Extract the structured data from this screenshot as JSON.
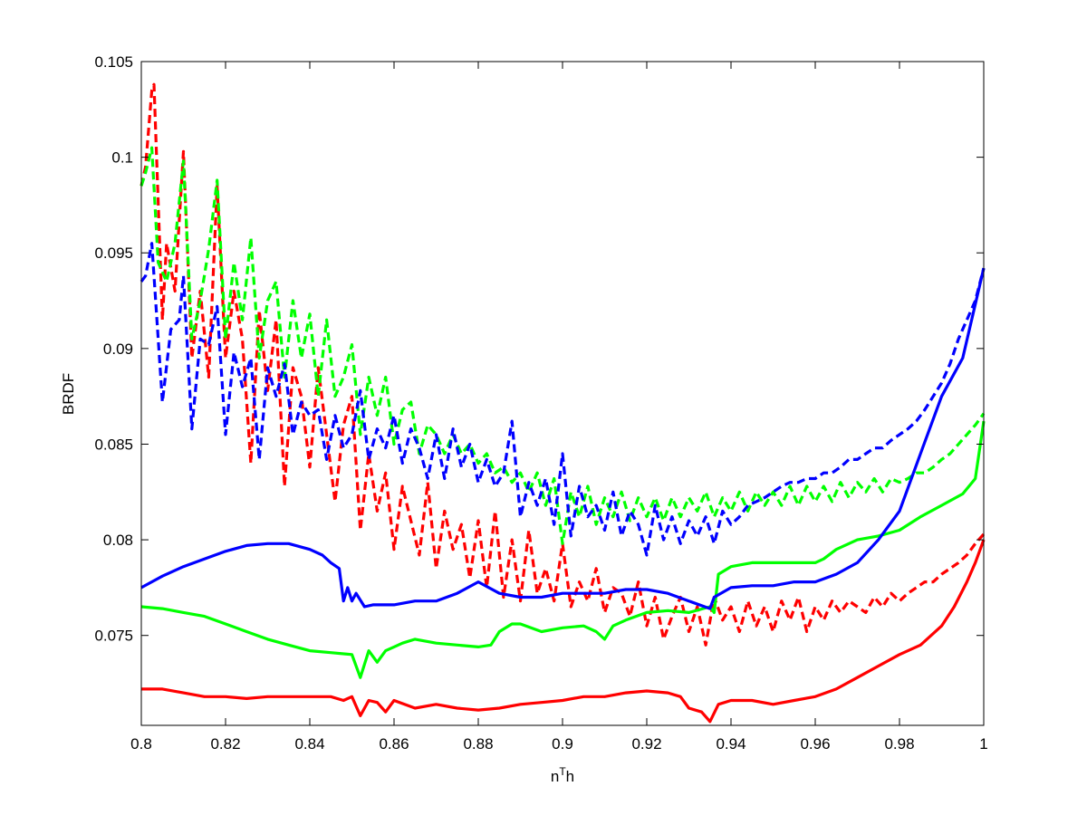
{
  "chart_data": {
    "type": "line",
    "title": "",
    "xlabel": "n",
    "xlabel_sup": "T",
    "xlabel_suffix": "h",
    "ylabel": "BRDF",
    "xlim": [
      0.8,
      1.0
    ],
    "ylim": [
      0.0703,
      0.105
    ],
    "xticks": [
      0.8,
      0.82,
      0.84,
      0.86,
      0.88,
      0.9,
      0.92,
      0.94,
      0.96,
      0.98,
      1.0
    ],
    "xtick_labels": [
      "0.8",
      "0.82",
      "0.84",
      "0.86",
      "0.88",
      "0.9",
      "0.92",
      "0.94",
      "0.96",
      "0.98",
      "1"
    ],
    "yticks": [
      0.075,
      0.08,
      0.085,
      0.09,
      0.095,
      0.1,
      0.105
    ],
    "ytick_labels": [
      "0.075",
      "0.08",
      "0.085",
      "0.09",
      "0.095",
      "0.1",
      "0.105"
    ],
    "grid": false,
    "legend": "none",
    "series": [
      {
        "color": "#ff0000",
        "style": "dashed",
        "x": [
          0.8,
          0.801,
          0.8025,
          0.803,
          0.805,
          0.806,
          0.808,
          0.81,
          0.812,
          0.814,
          0.816,
          0.818,
          0.82,
          0.822,
          0.824,
          0.826,
          0.828,
          0.83,
          0.832,
          0.834,
          0.836,
          0.838,
          0.84,
          0.842,
          0.844,
          0.846,
          0.848,
          0.85,
          0.852,
          0.854,
          0.856,
          0.858,
          0.86,
          0.862,
          0.864,
          0.866,
          0.868,
          0.87,
          0.872,
          0.874,
          0.876,
          0.878,
          0.88,
          0.882,
          0.884,
          0.886,
          0.888,
          0.89,
          0.892,
          0.894,
          0.896,
          0.898,
          0.9,
          0.902,
          0.904,
          0.906,
          0.908,
          0.91,
          0.912,
          0.914,
          0.916,
          0.918,
          0.92,
          0.922,
          0.924,
          0.926,
          0.928,
          0.93,
          0.932,
          0.934,
          0.936,
          0.938,
          0.94,
          0.942,
          0.944,
          0.946,
          0.948,
          0.95,
          0.952,
          0.954,
          0.956,
          0.958,
          0.96,
          0.962,
          0.964,
          0.966,
          0.968,
          0.97,
          0.972,
          0.974,
          0.976,
          0.978,
          0.98,
          0.982,
          0.984,
          0.986,
          0.988,
          0.99,
          0.992,
          0.994,
          0.996,
          0.998,
          1.0
        ],
        "y": [
          0.0985,
          0.0995,
          0.1035,
          0.1038,
          0.0915,
          0.0955,
          0.093,
          0.1003,
          0.0895,
          0.093,
          0.0885,
          0.0985,
          0.0895,
          0.093,
          0.0905,
          0.084,
          0.092,
          0.0878,
          0.0915,
          0.0828,
          0.089,
          0.0875,
          0.0838,
          0.089,
          0.0855,
          0.082,
          0.086,
          0.0875,
          0.0805,
          0.0845,
          0.0815,
          0.0835,
          0.0795,
          0.0828,
          0.081,
          0.0792,
          0.083,
          0.0785,
          0.0815,
          0.0795,
          0.0808,
          0.078,
          0.081,
          0.0775,
          0.0815,
          0.077,
          0.08,
          0.0768,
          0.0805,
          0.0772,
          0.0785,
          0.0768,
          0.0798,
          0.0765,
          0.0778,
          0.0768,
          0.0785,
          0.0762,
          0.0775,
          0.0772,
          0.076,
          0.0778,
          0.0755,
          0.077,
          0.0748,
          0.076,
          0.077,
          0.0752,
          0.0765,
          0.0745,
          0.077,
          0.0758,
          0.0765,
          0.0752,
          0.0768,
          0.0755,
          0.0765,
          0.0752,
          0.0768,
          0.0758,
          0.077,
          0.0752,
          0.0765,
          0.0758,
          0.0768,
          0.0762,
          0.0768,
          0.0765,
          0.0762,
          0.077,
          0.0765,
          0.0772,
          0.0768,
          0.0772,
          0.0775,
          0.0778,
          0.0778,
          0.0782,
          0.0785,
          0.0788,
          0.0792,
          0.0798,
          0.0803
        ]
      },
      {
        "color": "#00ff00",
        "style": "dashed",
        "x": [
          0.8,
          0.801,
          0.8025,
          0.804,
          0.806,
          0.808,
          0.81,
          0.812,
          0.814,
          0.816,
          0.818,
          0.82,
          0.822,
          0.824,
          0.826,
          0.828,
          0.83,
          0.832,
          0.834,
          0.836,
          0.838,
          0.84,
          0.842,
          0.844,
          0.846,
          0.848,
          0.85,
          0.852,
          0.854,
          0.856,
          0.858,
          0.86,
          0.862,
          0.864,
          0.866,
          0.868,
          0.87,
          0.872,
          0.874,
          0.876,
          0.878,
          0.88,
          0.882,
          0.884,
          0.886,
          0.888,
          0.89,
          0.892,
          0.894,
          0.896,
          0.898,
          0.9,
          0.902,
          0.904,
          0.906,
          0.908,
          0.91,
          0.912,
          0.914,
          0.916,
          0.918,
          0.92,
          0.922,
          0.924,
          0.926,
          0.928,
          0.93,
          0.932,
          0.934,
          0.936,
          0.938,
          0.94,
          0.942,
          0.944,
          0.946,
          0.948,
          0.95,
          0.952,
          0.954,
          0.956,
          0.958,
          0.96,
          0.962,
          0.964,
          0.966,
          0.968,
          0.97,
          0.972,
          0.974,
          0.976,
          0.978,
          0.98,
          0.982,
          0.984,
          0.986,
          0.988,
          0.99,
          0.992,
          0.994,
          0.996,
          0.998,
          1.0
        ],
        "y": [
          0.0985,
          0.0992,
          0.1005,
          0.0945,
          0.0935,
          0.0955,
          0.0998,
          0.0905,
          0.0925,
          0.0952,
          0.0988,
          0.0905,
          0.0945,
          0.0915,
          0.0958,
          0.0895,
          0.0925,
          0.0935,
          0.0885,
          0.0925,
          0.0895,
          0.0918,
          0.0875,
          0.0915,
          0.0875,
          0.0885,
          0.0902,
          0.0855,
          0.0885,
          0.0865,
          0.0885,
          0.085,
          0.0868,
          0.0872,
          0.0845,
          0.086,
          0.0855,
          0.0845,
          0.0855,
          0.0845,
          0.085,
          0.084,
          0.0845,
          0.0835,
          0.0838,
          0.083,
          0.0835,
          0.0825,
          0.0835,
          0.0818,
          0.0832,
          0.0798,
          0.0825,
          0.0812,
          0.0828,
          0.0808,
          0.0822,
          0.0812,
          0.0825,
          0.081,
          0.0822,
          0.0812,
          0.0822,
          0.081,
          0.0822,
          0.0812,
          0.0822,
          0.0815,
          0.0825,
          0.0812,
          0.0822,
          0.0815,
          0.0825,
          0.0815,
          0.0825,
          0.0818,
          0.0825,
          0.0818,
          0.0828,
          0.0818,
          0.0828,
          0.082,
          0.0828,
          0.082,
          0.083,
          0.0822,
          0.083,
          0.0825,
          0.0832,
          0.0825,
          0.0832,
          0.083,
          0.0832,
          0.0835,
          0.0835,
          0.0838,
          0.0842,
          0.0845,
          0.085,
          0.0855,
          0.086,
          0.0866
        ]
      },
      {
        "color": "#0000ff",
        "style": "dashed",
        "x": [
          0.8,
          0.801,
          0.8025,
          0.805,
          0.807,
          0.809,
          0.81,
          0.812,
          0.814,
          0.816,
          0.818,
          0.82,
          0.822,
          0.824,
          0.826,
          0.828,
          0.83,
          0.832,
          0.834,
          0.836,
          0.838,
          0.84,
          0.842,
          0.844,
          0.846,
          0.848,
          0.85,
          0.852,
          0.854,
          0.856,
          0.858,
          0.86,
          0.862,
          0.864,
          0.866,
          0.868,
          0.87,
          0.872,
          0.874,
          0.876,
          0.878,
          0.88,
          0.882,
          0.884,
          0.886,
          0.888,
          0.89,
          0.892,
          0.894,
          0.896,
          0.898,
          0.9,
          0.902,
          0.904,
          0.906,
          0.908,
          0.91,
          0.912,
          0.914,
          0.916,
          0.918,
          0.92,
          0.922,
          0.924,
          0.926,
          0.928,
          0.93,
          0.932,
          0.934,
          0.936,
          0.938,
          0.94,
          0.942,
          0.944,
          0.946,
          0.948,
          0.95,
          0.952,
          0.954,
          0.956,
          0.958,
          0.96,
          0.962,
          0.964,
          0.966,
          0.968,
          0.97,
          0.972,
          0.974,
          0.976,
          0.978,
          0.98,
          0.982,
          0.984,
          0.986,
          0.988,
          0.99,
          0.992,
          0.994,
          0.996,
          0.998,
          1.0
        ],
        "y": [
          0.0935,
          0.0938,
          0.0955,
          0.0872,
          0.091,
          0.0915,
          0.0938,
          0.0858,
          0.0905,
          0.0902,
          0.0922,
          0.0855,
          0.0898,
          0.088,
          0.0895,
          0.0842,
          0.089,
          0.0875,
          0.0892,
          0.0855,
          0.0872,
          0.0865,
          0.0868,
          0.0842,
          0.0865,
          0.0848,
          0.0855,
          0.0878,
          0.0842,
          0.0858,
          0.0848,
          0.0865,
          0.084,
          0.0858,
          0.0848,
          0.0832,
          0.0855,
          0.0832,
          0.0858,
          0.0838,
          0.085,
          0.083,
          0.0842,
          0.0828,
          0.0835,
          0.0862,
          0.0812,
          0.083,
          0.0818,
          0.0832,
          0.0808,
          0.0845,
          0.0802,
          0.0828,
          0.0812,
          0.0818,
          0.0805,
          0.0825,
          0.0802,
          0.0815,
          0.0808,
          0.0792,
          0.0818,
          0.08,
          0.0812,
          0.0798,
          0.081,
          0.0802,
          0.0812,
          0.0798,
          0.0815,
          0.0808,
          0.0812,
          0.0818,
          0.082,
          0.0822,
          0.0825,
          0.0828,
          0.083,
          0.083,
          0.0832,
          0.0832,
          0.0835,
          0.0835,
          0.0838,
          0.0842,
          0.0842,
          0.0845,
          0.0848,
          0.0848,
          0.0852,
          0.0855,
          0.0858,
          0.0862,
          0.0868,
          0.0875,
          0.0882,
          0.0892,
          0.0905,
          0.0915,
          0.0925,
          0.0942
        ]
      },
      {
        "color": "#ff0000",
        "style": "solid",
        "x": [
          0.8,
          0.805,
          0.81,
          0.815,
          0.82,
          0.825,
          0.83,
          0.835,
          0.84,
          0.845,
          0.848,
          0.85,
          0.852,
          0.854,
          0.856,
          0.858,
          0.86,
          0.865,
          0.87,
          0.875,
          0.88,
          0.885,
          0.89,
          0.895,
          0.9,
          0.905,
          0.91,
          0.915,
          0.92,
          0.925,
          0.928,
          0.93,
          0.933,
          0.935,
          0.937,
          0.94,
          0.945,
          0.95,
          0.955,
          0.96,
          0.965,
          0.97,
          0.975,
          0.98,
          0.985,
          0.99,
          0.993,
          0.996,
          0.998,
          1.0
        ],
        "y": [
          0.0722,
          0.0722,
          0.072,
          0.0718,
          0.0718,
          0.0717,
          0.0718,
          0.0718,
          0.0718,
          0.0718,
          0.0716,
          0.0718,
          0.0708,
          0.0716,
          0.0715,
          0.071,
          0.0716,
          0.0712,
          0.0714,
          0.0712,
          0.0711,
          0.0712,
          0.0714,
          0.0715,
          0.0716,
          0.0718,
          0.0718,
          0.072,
          0.0721,
          0.072,
          0.0718,
          0.0712,
          0.071,
          0.0705,
          0.0714,
          0.0716,
          0.0716,
          0.0714,
          0.0716,
          0.0718,
          0.0722,
          0.0728,
          0.0734,
          0.074,
          0.0745,
          0.0755,
          0.0765,
          0.0778,
          0.0788,
          0.08
        ]
      },
      {
        "color": "#00ff00",
        "style": "solid",
        "x": [
          0.8,
          0.805,
          0.81,
          0.815,
          0.82,
          0.825,
          0.83,
          0.835,
          0.84,
          0.845,
          0.85,
          0.852,
          0.854,
          0.856,
          0.858,
          0.86,
          0.862,
          0.865,
          0.87,
          0.875,
          0.88,
          0.883,
          0.885,
          0.888,
          0.89,
          0.895,
          0.9,
          0.905,
          0.908,
          0.91,
          0.912,
          0.915,
          0.92,
          0.925,
          0.93,
          0.935,
          0.936,
          0.937,
          0.94,
          0.945,
          0.95,
          0.955,
          0.96,
          0.962,
          0.965,
          0.97,
          0.975,
          0.98,
          0.985,
          0.99,
          0.995,
          0.998,
          1.0
        ],
        "y": [
          0.0765,
          0.0764,
          0.0762,
          0.076,
          0.0756,
          0.0752,
          0.0748,
          0.0745,
          0.0742,
          0.0741,
          0.074,
          0.0728,
          0.0742,
          0.0736,
          0.0742,
          0.0744,
          0.0746,
          0.0748,
          0.0746,
          0.0745,
          0.0744,
          0.0745,
          0.0752,
          0.0756,
          0.0756,
          0.0752,
          0.0754,
          0.0755,
          0.0752,
          0.0748,
          0.0755,
          0.0758,
          0.0762,
          0.0763,
          0.0762,
          0.0765,
          0.0762,
          0.0782,
          0.0786,
          0.0788,
          0.0788,
          0.0788,
          0.0788,
          0.079,
          0.0795,
          0.08,
          0.0802,
          0.0805,
          0.0812,
          0.0818,
          0.0824,
          0.0832,
          0.0862
        ]
      },
      {
        "color": "#0000ff",
        "style": "solid",
        "x": [
          0.8,
          0.805,
          0.81,
          0.815,
          0.82,
          0.825,
          0.83,
          0.835,
          0.84,
          0.843,
          0.845,
          0.847,
          0.848,
          0.849,
          0.85,
          0.851,
          0.853,
          0.855,
          0.86,
          0.865,
          0.87,
          0.875,
          0.88,
          0.885,
          0.89,
          0.895,
          0.9,
          0.905,
          0.91,
          0.915,
          0.92,
          0.925,
          0.93,
          0.935,
          0.936,
          0.94,
          0.945,
          0.95,
          0.955,
          0.96,
          0.965,
          0.97,
          0.975,
          0.98,
          0.985,
          0.99,
          0.995,
          1.0
        ],
        "y": [
          0.0775,
          0.0781,
          0.0786,
          0.079,
          0.0794,
          0.0797,
          0.0798,
          0.0798,
          0.0795,
          0.0792,
          0.0788,
          0.0785,
          0.0768,
          0.0775,
          0.0768,
          0.0772,
          0.0765,
          0.0766,
          0.0766,
          0.0768,
          0.0768,
          0.0772,
          0.0778,
          0.0772,
          0.077,
          0.077,
          0.0772,
          0.0772,
          0.0772,
          0.0774,
          0.0774,
          0.0772,
          0.0768,
          0.0764,
          0.077,
          0.0775,
          0.0776,
          0.0776,
          0.0778,
          0.0778,
          0.0782,
          0.0788,
          0.08,
          0.0815,
          0.0845,
          0.0875,
          0.0895,
          0.0942
        ]
      }
    ]
  }
}
